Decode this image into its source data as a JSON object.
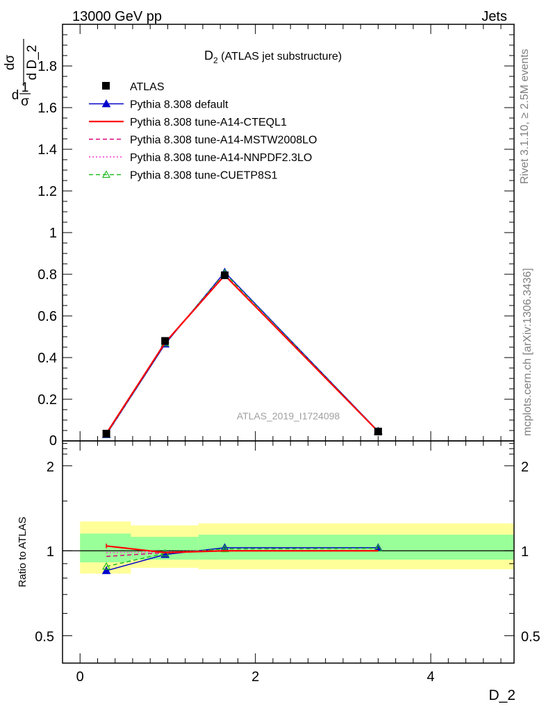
{
  "header": {
    "left": "13000 GeV pp",
    "right": "Jets"
  },
  "side_labels": {
    "rivet": "Rivet 3.1.10, ≥ 2.5M events",
    "mcplots": "mcplots.cern.ch [arXiv:1306.3436]"
  },
  "chart_data": {
    "type": "line",
    "title": "D₂ (ATLAS jet substructure)",
    "title_main": "D",
    "title_sub": "2",
    "title_rest": " (ATLAS jet substructure)",
    "watermark": "ATLAS_2019_I1724098",
    "xlabel": "D_2",
    "ylabel": "1/σ dσ/d D_2",
    "ylabel_parts": {
      "num1": "1",
      "den1": "σ",
      "d": "d",
      "num2": "dσ",
      "den2": "d D_2"
    },
    "ratio_ylabel": "Ratio to ATLAS",
    "xlim": [
      -0.2,
      4.95
    ],
    "ylim": [
      0,
      2.0
    ],
    "ratio_ylim": [
      0.4,
      2.45
    ],
    "x_ticks": [
      0,
      2,
      4
    ],
    "y_ticks": [
      0.2,
      0.4,
      0.6,
      0.8,
      1.0,
      1.2,
      1.4,
      1.6,
      1.8
    ],
    "y_tick_labels": [
      "0.2",
      "0.4",
      "0.6",
      "0.8",
      "1",
      "1.2",
      "1.4",
      "1.6",
      "1.8"
    ],
    "y_zero_label": "0",
    "ratio_y_ticks": [
      0.5,
      1,
      2
    ],
    "ratio_y_tick_labels": [
      "0.5",
      "1",
      "2"
    ],
    "x_bin_edges": [
      0.0,
      0.58,
      1.35,
      4.95
    ],
    "x": [
      0.3,
      0.97,
      1.65,
      3.4
    ],
    "data": {
      "name": "ATLAS",
      "values": [
        0.035,
        0.48,
        0.795,
        0.045
      ]
    },
    "bands": [
      {
        "x0": 0.0,
        "x1": 0.58,
        "yellow": [
          0.83,
          1.27
        ],
        "green": [
          0.91,
          1.15
        ]
      },
      {
        "x0": 0.58,
        "x1": 1.35,
        "yellow": [
          0.87,
          1.23
        ],
        "green": [
          0.93,
          1.12
        ]
      },
      {
        "x0": 1.35,
        "x1": 4.95,
        "yellow": [
          0.86,
          1.25
        ],
        "green": [
          0.93,
          1.14
        ]
      }
    ],
    "series": [
      {
        "name": "Pythia 8.308 default",
        "color": "#0000cc",
        "dash": "",
        "marker": "triangle-filled",
        "values": [
          0.03,
          0.465,
          0.81,
          0.047
        ],
        "ratio": [
          0.85,
          0.97,
          1.025,
          1.025
        ]
      },
      {
        "name": "Pythia 8.308 tune-A14-CTEQL1",
        "color": "#ff0000",
        "dash": "",
        "marker": "none",
        "values": [
          0.036,
          0.472,
          0.795,
          0.045
        ],
        "ratio": [
          1.04,
          0.985,
          1.0,
          1.0
        ]
      },
      {
        "name": "Pythia 8.308 tune-A14-MSTW2008LO",
        "color": "#e0007a",
        "dash": "6,4",
        "marker": "none",
        "values": [
          0.033,
          0.472,
          0.797,
          0.045
        ],
        "ratio": [
          0.955,
          0.985,
          1.0,
          1.0
        ]
      },
      {
        "name": "Pythia 8.308 tune-A14-NNPDF2.3LO",
        "color": "#ff33cc",
        "dash": "2,3",
        "marker": "none",
        "values": [
          0.034,
          0.474,
          0.798,
          0.045
        ],
        "ratio": [
          0.985,
          0.99,
          1.003,
          1.003
        ]
      },
      {
        "name": "Pythia 8.308 tune-CUETP8S1",
        "color": "#22bb22",
        "dash": "6,4",
        "marker": "triangle-open",
        "values": [
          0.031,
          0.47,
          0.805,
          0.046
        ],
        "ratio": [
          0.88,
          0.98,
          1.015,
          1.02
        ]
      }
    ],
    "colors": {
      "yellow_band": "#ffff99",
      "green_band": "#99ff99",
      "data_marker": "#000000"
    }
  }
}
